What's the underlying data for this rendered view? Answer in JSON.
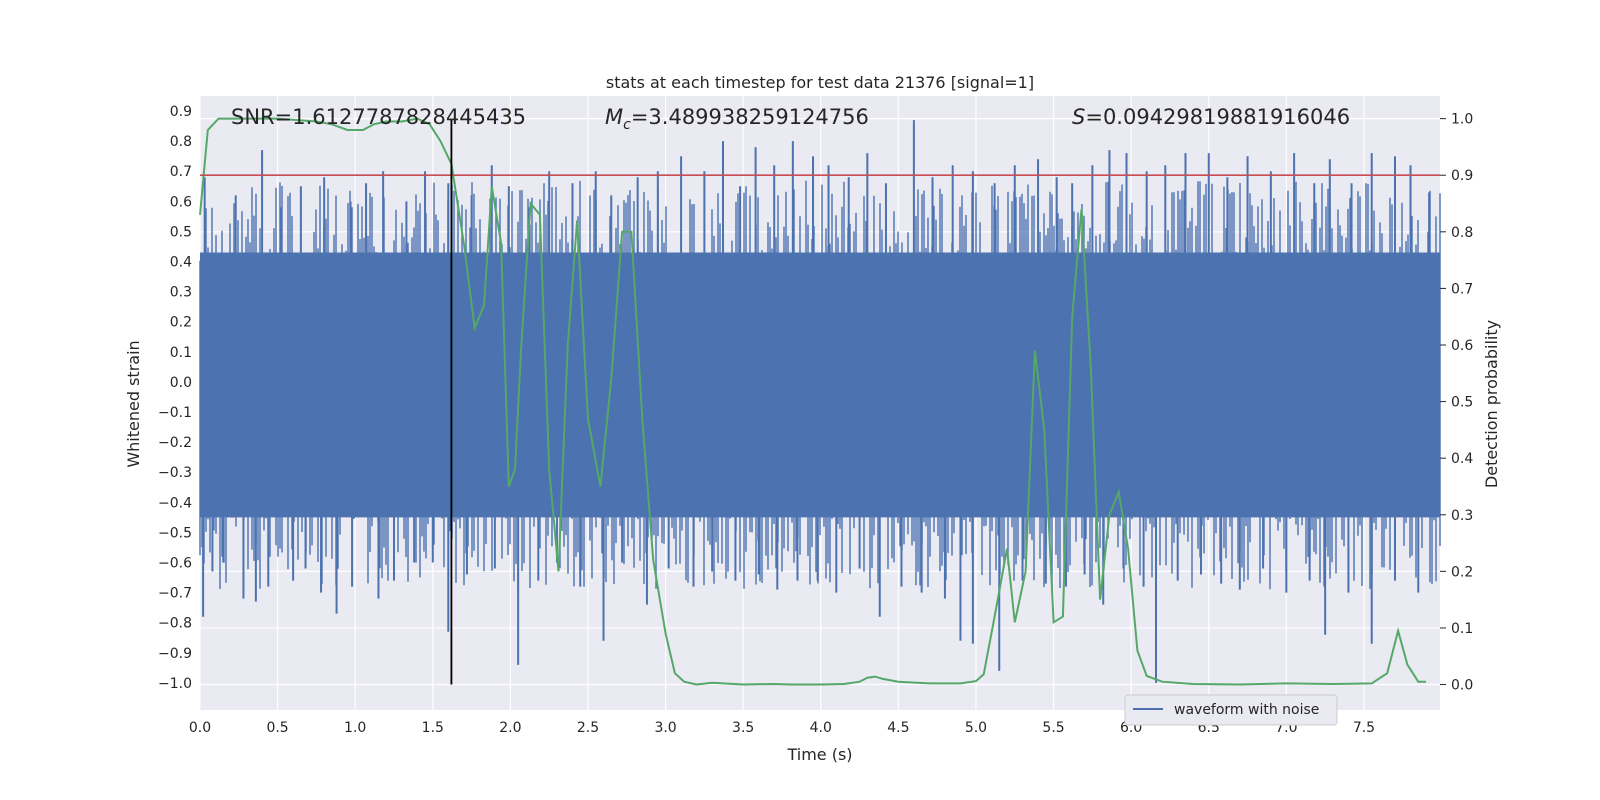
{
  "chart_data": {
    "type": "line",
    "title": "stats at each timestep for test data 21376 [signal=1]",
    "xlabel": "Time (s)",
    "ylabel_left": "Whitened strain",
    "ylabel_right": "Detection probability",
    "xlim": [
      0.0,
      7.99
    ],
    "ylim_left": [
      -1.09,
      0.95
    ],
    "ylim_right": [
      -0.045,
      1.04
    ],
    "x_ticks": [
      "0.0",
      "0.5",
      "1.0",
      "1.5",
      "2.0",
      "2.5",
      "3.0",
      "3.5",
      "4.0",
      "4.5",
      "5.0",
      "5.5",
      "6.0",
      "6.5",
      "7.0",
      "7.5"
    ],
    "y_left_ticks": [
      "0.9",
      "0.8",
      "0.7",
      "0.6",
      "0.5",
      "0.4",
      "0.3",
      "0.2",
      "0.1",
      "0.0",
      "-0.1",
      "-0.2",
      "-0.3",
      "-0.4",
      "-0.5",
      "-0.6",
      "-0.7",
      "-0.8",
      "-0.9",
      "-1.0"
    ],
    "y_right_ticks": [
      "1.0",
      "0.9",
      "0.8",
      "0.7",
      "0.6",
      "0.5",
      "0.4",
      "0.3",
      "0.2",
      "0.1",
      "0.0"
    ],
    "annotations": {
      "snr": "SNR=1.6127787828445435",
      "mc_symbol": "M",
      "mc_sub": "c",
      "mc_value": "=3.489938259124756",
      "s_symbol": "S",
      "s_value": "=0.09429819881916046"
    },
    "legend": [
      "waveform with noise"
    ],
    "threshold": 0.9,
    "marker_time": 1.62,
    "noise_band": {
      "typical_min": -0.45,
      "typical_max": 0.43
    },
    "waveform_peaks": {
      "x": [
        0.03,
        0.23,
        0.4,
        0.52,
        0.65,
        0.8,
        0.97,
        1.07,
        1.18,
        1.33,
        1.45,
        1.6,
        1.75,
        1.88,
        1.99,
        2.12,
        2.25,
        2.4,
        2.55,
        2.65,
        2.82,
        2.95,
        3.1,
        3.25,
        3.37,
        3.48,
        3.58,
        3.7,
        3.82,
        3.95,
        4.05,
        4.18,
        4.3,
        4.42,
        4.6,
        4.72,
        4.85,
        4.98,
        5.12,
        5.25,
        5.4,
        5.52,
        5.62,
        5.75,
        5.86,
        5.97,
        6.1,
        6.22,
        6.35,
        6.5,
        6.62,
        6.75,
        6.9,
        7.05,
        7.18,
        7.28,
        7.42,
        7.55,
        7.7,
        7.8,
        7.92
      ],
      "y": [
        0.68,
        0.62,
        0.77,
        0.58,
        0.65,
        0.68,
        0.6,
        0.66,
        0.7,
        0.6,
        0.7,
        0.66,
        0.62,
        0.72,
        0.65,
        0.58,
        0.7,
        0.66,
        0.7,
        0.62,
        0.68,
        0.7,
        0.75,
        0.7,
        0.8,
        0.65,
        0.78,
        0.72,
        0.8,
        0.75,
        0.72,
        0.68,
        0.76,
        0.66,
        0.87,
        0.68,
        0.72,
        0.7,
        0.66,
        0.72,
        0.74,
        0.68,
        0.66,
        0.72,
        0.77,
        0.76,
        0.7,
        0.72,
        0.76,
        0.76,
        0.68,
        0.75,
        0.7,
        0.76,
        0.66,
        0.74,
        0.66,
        0.76,
        0.75,
        0.72,
        0.63
      ]
    },
    "waveform_troughs": {
      "x": [
        0.02,
        0.08,
        0.15,
        0.28,
        0.36,
        0.44,
        0.6,
        0.68,
        0.78,
        0.88,
        0.98,
        1.15,
        1.25,
        1.38,
        1.5,
        1.6,
        1.72,
        1.9,
        2.05,
        2.18,
        2.3,
        2.45,
        2.6,
        2.72,
        2.88,
        3.02,
        3.18,
        3.3,
        3.45,
        3.6,
        3.72,
        3.85,
        3.98,
        4.1,
        4.25,
        4.38,
        4.52,
        4.65,
        4.8,
        4.9,
        4.98,
        5.15,
        5.3,
        5.45,
        5.58,
        5.7,
        5.82,
        5.95,
        6.08,
        6.16,
        6.3,
        6.45,
        6.58,
        6.7,
        6.85,
        7.0,
        7.15,
        7.25,
        7.4,
        7.55,
        7.7,
        7.85
      ],
      "y": [
        -0.78,
        -0.63,
        -0.6,
        -0.72,
        -0.73,
        -0.68,
        -0.66,
        -0.62,
        -0.7,
        -0.77,
        -0.68,
        -0.72,
        -0.66,
        -0.6,
        -0.6,
        -0.83,
        -0.64,
        -0.62,
        -0.94,
        -0.66,
        -0.6,
        -0.68,
        -0.86,
        -0.6,
        -0.74,
        -0.62,
        -0.68,
        -0.63,
        -0.66,
        -0.64,
        -0.69,
        -0.66,
        -0.66,
        -0.7,
        -0.62,
        -0.78,
        -0.68,
        -0.7,
        -0.72,
        -0.86,
        -0.87,
        -0.96,
        -0.66,
        -0.67,
        -0.68,
        -0.64,
        -0.74,
        -0.62,
        -0.68,
        -1.0,
        -0.66,
        -0.64,
        -0.67,
        -0.69,
        -0.62,
        -0.7,
        -0.66,
        -0.84,
        -0.7,
        -0.87,
        -0.66,
        -0.7
      ]
    },
    "detection_probability": {
      "x": [
        0.0,
        0.05,
        0.12,
        0.25,
        0.5,
        0.75,
        0.85,
        0.95,
        1.05,
        1.12,
        1.2,
        1.3,
        1.4,
        1.48,
        1.55,
        1.62,
        1.7,
        1.77,
        1.83,
        1.88,
        1.94,
        1.99,
        2.03,
        2.07,
        2.13,
        2.19,
        2.25,
        2.31,
        2.37,
        2.43,
        2.5,
        2.58,
        2.65,
        2.72,
        2.78,
        2.85,
        2.92,
        3.0,
        3.06,
        3.12,
        3.2,
        3.3,
        3.5,
        3.7,
        3.8,
        4.0,
        4.15,
        4.25,
        4.3,
        4.35,
        4.4,
        4.5,
        4.7,
        4.9,
        5.0,
        5.05,
        5.12,
        5.2,
        5.25,
        5.32,
        5.38,
        5.44,
        5.5,
        5.56,
        5.62,
        5.68,
        5.74,
        5.8,
        5.86,
        5.92,
        5.98,
        6.04,
        6.1,
        6.2,
        6.4,
        6.7,
        7.0,
        7.3,
        7.55,
        7.65,
        7.72,
        7.78,
        7.85,
        7.9
      ],
      "y": [
        0.83,
        0.98,
        1.0,
        1.0,
        1.0,
        0.995,
        0.99,
        0.98,
        0.98,
        0.99,
        0.995,
        0.995,
        1.0,
        0.99,
        0.96,
        0.92,
        0.78,
        0.63,
        0.67,
        0.88,
        0.78,
        0.35,
        0.38,
        0.6,
        0.85,
        0.83,
        0.38,
        0.2,
        0.6,
        0.82,
        0.47,
        0.35,
        0.54,
        0.8,
        0.8,
        0.47,
        0.22,
        0.09,
        0.02,
        0.005,
        0.0,
        0.003,
        0.0,
        0.001,
        0.0,
        0.0,
        0.001,
        0.005,
        0.012,
        0.014,
        0.01,
        0.005,
        0.002,
        0.002,
        0.006,
        0.018,
        0.12,
        0.24,
        0.11,
        0.2,
        0.59,
        0.45,
        0.11,
        0.12,
        0.65,
        0.84,
        0.56,
        0.15,
        0.3,
        0.34,
        0.24,
        0.06,
        0.015,
        0.005,
        0.001,
        0.0,
        0.002,
        0.001,
        0.002,
        0.02,
        0.095,
        0.035,
        0.005,
        0.005
      ]
    },
    "colors": {
      "axes_bg": "#EAEAF2",
      "grid": "#FFFFFF",
      "waveform": "#4C72B0",
      "probability": "#55A868",
      "threshold": "#C44E52",
      "marker": "#000000",
      "text": "#262626"
    }
  }
}
